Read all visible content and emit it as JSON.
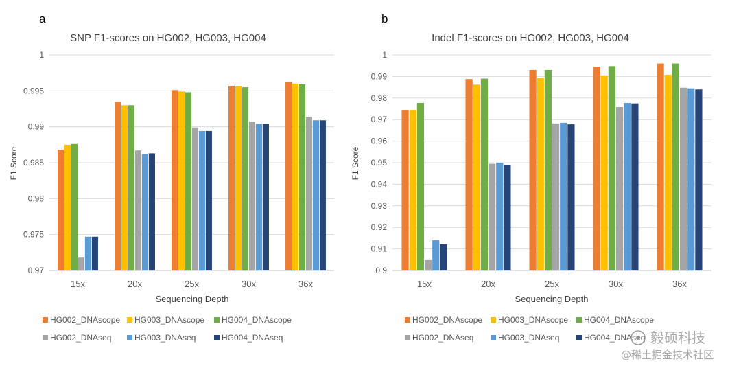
{
  "chart_data": [
    {
      "panel": "a",
      "type": "bar",
      "title": "SNP F1-scores on HG002, HG003, HG004",
      "xlabel": "Sequencing Depth",
      "ylabel": "F1 Score",
      "ylim": [
        0.97,
        1.0
      ],
      "yticks": [
        "0.97",
        "0.975",
        "0.98",
        "0.985",
        "0.99",
        "0.995",
        "1"
      ],
      "grid": true,
      "legend_position": "bottom",
      "categories": [
        "15x",
        "20x",
        "25x",
        "30x",
        "36x"
      ],
      "series": [
        {
          "name": "HG002_DNAscope",
          "color": "#ED7D31",
          "values": [
            0.9868,
            0.9935,
            0.9951,
            0.9957,
            0.9962
          ]
        },
        {
          "name": "HG003_DNAscope",
          "color": "#FFC000",
          "values": [
            0.9875,
            0.993,
            0.9949,
            0.9956,
            0.996
          ]
        },
        {
          "name": "HG004_DNAscope",
          "color": "#70AD47",
          "values": [
            0.9876,
            0.993,
            0.9948,
            0.9955,
            0.9959
          ]
        },
        {
          "name": "HG002_DNAseq",
          "color": "#A5A5A5",
          "values": [
            0.9718,
            0.9867,
            0.9899,
            0.9907,
            0.9914
          ]
        },
        {
          "name": "HG003_DNAseq",
          "color": "#5B9BD5",
          "values": [
            0.9747,
            0.9862,
            0.9894,
            0.9904,
            0.9909
          ]
        },
        {
          "name": "HG004_DNAseq",
          "color": "#264478",
          "values": [
            0.9747,
            0.9863,
            0.9894,
            0.9904,
            0.9909
          ]
        }
      ]
    },
    {
      "panel": "b",
      "type": "bar",
      "title": "Indel F1-scores on HG002, HG003, HG004",
      "xlabel": "Sequencing Depth",
      "ylabel": "F1 Score",
      "ylim": [
        0.9,
        1.0
      ],
      "yticks": [
        "0.9",
        "0.91",
        "0.92",
        "0.93",
        "0.94",
        "0.95",
        "0.96",
        "0.97",
        "0.98",
        "0.99",
        "1"
      ],
      "grid": true,
      "legend_position": "bottom",
      "categories": [
        "15x",
        "20x",
        "25x",
        "30x",
        "36x"
      ],
      "series": [
        {
          "name": "HG002_DNAscope",
          "color": "#ED7D31",
          "values": [
            0.9745,
            0.9888,
            0.993,
            0.9945,
            0.996
          ]
        },
        {
          "name": "HG003_DNAscope",
          "color": "#FFC000",
          "values": [
            0.9745,
            0.9862,
            0.9893,
            0.9905,
            0.9908
          ]
        },
        {
          "name": "HG004_DNAscope",
          "color": "#70AD47",
          "values": [
            0.9777,
            0.989,
            0.993,
            0.9948,
            0.996
          ]
        },
        {
          "name": "HG002_DNAseq",
          "color": "#A5A5A5",
          "values": [
            0.9048,
            0.9495,
            0.9682,
            0.9758,
            0.9848
          ]
        },
        {
          "name": "HG003_DNAseq",
          "color": "#5B9BD5",
          "values": [
            0.914,
            0.95,
            0.9685,
            0.9777,
            0.9845
          ]
        },
        {
          "name": "HG004_DNAseq",
          "color": "#264478",
          "values": [
            0.9122,
            0.949,
            0.9678,
            0.9775,
            0.984
          ]
        }
      ]
    }
  ],
  "watermark": {
    "line1": "毅硕科技",
    "line2": "@稀土掘金技术社区"
  }
}
